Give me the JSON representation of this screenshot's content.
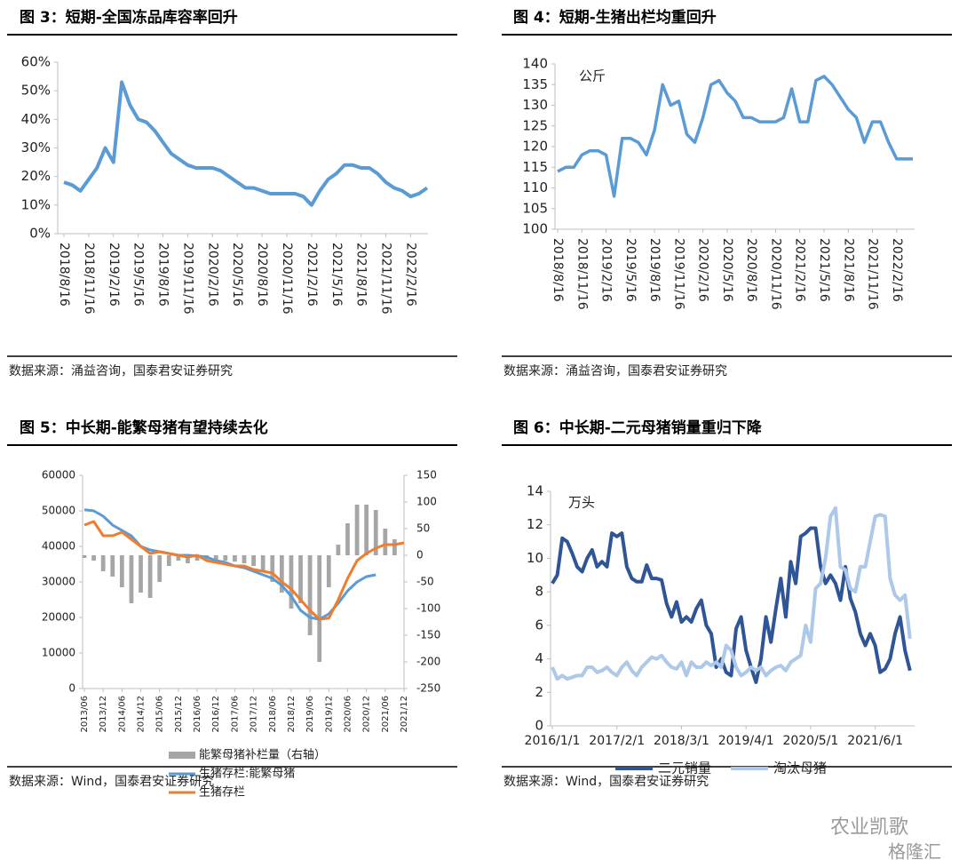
{
  "chart_data": [
    {
      "type": "line",
      "title": "图 3：短期-全国冻品库容率回升",
      "source": "数据来源：涌益咨询，国泰君安证券研究",
      "categories": [
        "2018/8/16",
        null,
        null,
        "2018/11/16",
        null,
        null,
        "2019/2/16",
        null,
        null,
        "2019/5/16",
        null,
        null,
        "2019/8/16",
        null,
        null,
        "2019/11/16",
        null,
        null,
        "2020/2/16",
        null,
        null,
        "2020/5/16",
        null,
        null,
        "2020/8/16",
        null,
        null,
        "2020/11/16",
        null,
        null,
        "2021/2/16",
        null,
        null,
        "2021/5/16",
        null,
        null,
        "2021/8/16",
        null,
        null,
        "2021/11/16",
        null,
        null,
        "2022/2/16",
        null,
        null
      ],
      "values": [
        18,
        17,
        15,
        19,
        23,
        30,
        25,
        53,
        45,
        40,
        39,
        36,
        32,
        28,
        26,
        24,
        23,
        23,
        23,
        22,
        20,
        18,
        16,
        16,
        15,
        14,
        14,
        14,
        14,
        13,
        10,
        15,
        19,
        21,
        24,
        24,
        23,
        23,
        21,
        18,
        16,
        15,
        13,
        14,
        16
      ],
      "color": "#5b9bd5",
      "ylim": [
        0,
        60
      ],
      "yticks": [
        {
          "value": 0,
          "label": "0%"
        },
        {
          "value": 10,
          "label": "10%"
        },
        {
          "value": 20,
          "label": "20%"
        },
        {
          "value": 30,
          "label": "30%"
        },
        {
          "value": 40,
          "label": "40%"
        },
        {
          "value": 50,
          "label": "50%"
        },
        {
          "value": 60,
          "label": "60%"
        }
      ]
    },
    {
      "type": "line",
      "title": "图 4：短期-生猪出栏均重回升",
      "source": "数据来源：涌益咨询，国泰君安证券研究",
      "unit": "公斤",
      "categories": [
        "2018/8/16",
        null,
        null,
        "2018/11/16",
        null,
        null,
        "2019/2/16",
        null,
        null,
        "2019/5/16",
        null,
        null,
        "2019/8/16",
        null,
        null,
        "2019/11/16",
        null,
        null,
        "2020/2/16",
        null,
        null,
        "2020/5/16",
        null,
        null,
        "2020/8/16",
        null,
        null,
        "2020/11/16",
        null,
        null,
        "2021/2/16",
        null,
        null,
        "2021/5/16",
        null,
        null,
        "2021/8/16",
        null,
        null,
        "2021/11/16",
        null,
        null,
        "2022/2/16",
        null,
        null
      ],
      "values": [
        114,
        115,
        115,
        118,
        119,
        119,
        118,
        108,
        122,
        122,
        121,
        118,
        124,
        135,
        130,
        131,
        123,
        121,
        127,
        135,
        136,
        133,
        131,
        127,
        127,
        126,
        126,
        126,
        127,
        134,
        126,
        126,
        136,
        137,
        135,
        132,
        129,
        127,
        121,
        126,
        126,
        121,
        117,
        117,
        117
      ],
      "color": "#5b9bd5",
      "ylim": [
        100,
        140
      ],
      "yticks": [
        100,
        105,
        110,
        115,
        120,
        125,
        130,
        135,
        140
      ]
    },
    {
      "type": "combo",
      "title": "图 5：中长期-能繁母猪有望持续去化",
      "source": "数据来源：Wind，国泰君安证券研究",
      "categories": [
        "2013/06",
        null,
        "2013/12",
        null,
        "2014/06",
        null,
        "2014/12",
        null,
        "2015/06",
        null,
        "2015/12",
        null,
        "2016/06",
        null,
        "2016/12",
        null,
        "2017/06",
        null,
        "2017/12",
        null,
        "2018/06",
        null,
        "2018/12",
        null,
        "2019/06",
        null,
        "2019/12",
        null,
        "2020/06",
        null,
        "2020/12",
        null,
        "2021/06",
        null,
        "2021/12"
      ],
      "series": [
        {
          "name": "能繁母猪补栏量（右轴）",
          "color": "#a6a6a6",
          "axis": "y2",
          "mark": "bar",
          "values": [
            -5,
            -10,
            -30,
            -40,
            -60,
            -90,
            -70,
            -80,
            -50,
            -20,
            -10,
            -15,
            -10,
            -8,
            -10,
            -10,
            -12,
            -15,
            -20,
            -30,
            -50,
            -70,
            -100,
            -90,
            -150,
            -200,
            -60,
            20,
            60,
            95,
            95,
            85,
            50,
            30,
            null
          ]
        },
        {
          "name": "生猪存栏:能繁母猪",
          "color": "#5b9bd5",
          "values": [
            50300,
            50000,
            48500,
            46000,
            44500,
            43000,
            40000,
            39000,
            38500,
            38000,
            37500,
            37500,
            37300,
            37000,
            36000,
            35500,
            34500,
            34000,
            33000,
            32000,
            31000,
            29000,
            26000,
            22000,
            20000,
            19500,
            21000,
            24000,
            27500,
            30000,
            31500,
            32000,
            null,
            null,
            null
          ]
        },
        {
          "name": "生猪存栏",
          "color": "#ed7d31",
          "values": [
            46000,
            47000,
            43000,
            43000,
            44000,
            42000,
            40000,
            38000,
            38500,
            38000,
            37500,
            37000,
            37500,
            36000,
            35500,
            35000,
            34500,
            34500,
            33500,
            33000,
            32500,
            30000,
            28000,
            25000,
            22000,
            19500,
            19800,
            25000,
            31000,
            36000,
            38000,
            39500,
            40500,
            40500,
            41000
          ]
        }
      ],
      "ylim": [
        0,
        60000
      ],
      "yticks": [
        0,
        10000,
        20000,
        30000,
        40000,
        50000,
        60000
      ],
      "y2lim": [
        -250,
        150
      ],
      "y2ticks": [
        -250,
        -200,
        -150,
        -100,
        -50,
        0,
        50,
        100,
        150
      ]
    },
    {
      "type": "line",
      "title": "图 6：中长期-二元母猪销量重归下降",
      "source": "数据来源：Wind，国泰君安证券研究",
      "unit": "万头",
      "categories": [
        "2016/1/1",
        null,
        null,
        null,
        null,
        null,
        null,
        null,
        null,
        null,
        null,
        null,
        null,
        "2017/2/1",
        null,
        null,
        null,
        null,
        null,
        null,
        null,
        null,
        null,
        null,
        null,
        null,
        "2018/3/1",
        null,
        null,
        null,
        null,
        null,
        null,
        null,
        null,
        null,
        null,
        null,
        null,
        "2019/4/1",
        null,
        null,
        null,
        null,
        null,
        null,
        null,
        null,
        null,
        null,
        null,
        null,
        "2020/5/1",
        null,
        null,
        null,
        null,
        null,
        null,
        null,
        null,
        null,
        null,
        null,
        null,
        "2021/6/1",
        null,
        null,
        null,
        null,
        null,
        null,
        null
      ],
      "series": [
        {
          "name": "二元销量",
          "color": "#2f5597",
          "values": [
            8.5,
            9,
            11.2,
            11,
            10.3,
            9.5,
            9.2,
            10,
            10.5,
            9.5,
            9.8,
            9.5,
            11.5,
            11.3,
            11.5,
            9.5,
            8.8,
            8.6,
            8.6,
            9.6,
            8.8,
            8.8,
            8.7,
            7.3,
            6.5,
            7.4,
            6.2,
            6.5,
            6.2,
            7,
            7.5,
            6,
            5.5,
            3.5,
            4,
            3.2,
            3,
            5.8,
            6.5,
            4.5,
            3.5,
            2.6,
            4,
            6.5,
            5,
            7,
            8.8,
            6.5,
            9.8,
            8.5,
            11.3,
            11.5,
            11.8,
            11.8,
            9.5,
            8.5,
            9,
            8.5,
            7.5,
            9.5,
            7.6,
            6.8,
            5.5,
            4.8,
            5.5,
            4.8,
            3.2,
            3.4,
            4,
            5.5,
            6.5,
            4.5,
            3.3
          ]
        },
        {
          "name": "淘汰母猪",
          "color": "#adc8e8",
          "values": [
            3.5,
            2.8,
            3,
            2.8,
            2.9,
            3,
            3,
            3.5,
            3.5,
            3.2,
            3.3,
            3.5,
            3.2,
            3,
            3.5,
            3.8,
            3.3,
            3,
            3.5,
            3.8,
            4.1,
            4,
            4.2,
            3.8,
            3.5,
            3.4,
            3.8,
            3,
            3.8,
            3.5,
            3.5,
            3.8,
            3.6,
            3.8,
            3.5,
            4.8,
            4.5,
            3.5,
            3,
            3.2,
            3.5,
            3.3,
            3.5,
            3,
            3.3,
            3.5,
            3.6,
            3.3,
            3.8,
            4,
            4.2,
            6,
            5,
            8.2,
            8.5,
            10,
            12.5,
            13,
            9.5,
            9.3,
            8.2,
            8,
            9.5,
            9.5,
            11,
            12.5,
            12.6,
            12.5,
            8.8,
            7.8,
            7.5,
            7.8,
            5.2
          ]
        }
      ],
      "ylim": [
        0,
        14
      ],
      "yticks": [
        0,
        2,
        4,
        6,
        8,
        10,
        12,
        14
      ]
    }
  ],
  "watermark": [
    "农业凯歌",
    "格隆汇"
  ]
}
